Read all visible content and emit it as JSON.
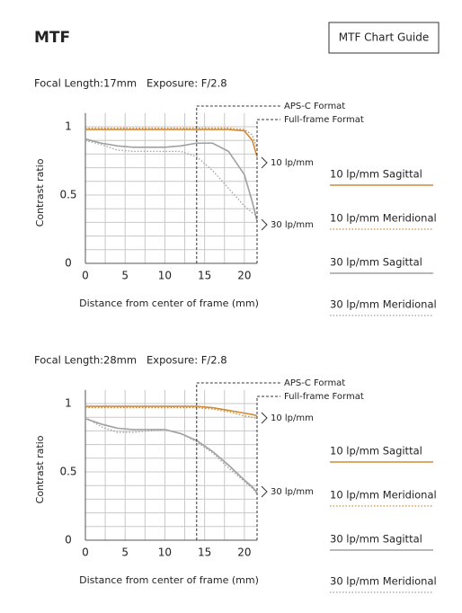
{
  "header": {
    "title": "MTF",
    "button": "MTF Chart Guide"
  },
  "chart_data": [
    {
      "type": "line",
      "subtitles": [
        "Focal Length:17mm",
        "Exposure: F/2.8"
      ],
      "xlabel": "Distance from center of frame (mm)",
      "ylabel": "Contrast ratio",
      "x": [
        0,
        2,
        4,
        6,
        8,
        10,
        12,
        14,
        16,
        18,
        20,
        21,
        21.6
      ],
      "xlim": [
        0,
        21.6
      ],
      "xticks": [
        0,
        5,
        10,
        15,
        20
      ],
      "xgrid": [
        0,
        2.5,
        5,
        7.5,
        10,
        12.5,
        15,
        17.5,
        20
      ],
      "ylim": [
        0,
        1.1
      ],
      "yticks": [
        0,
        0.5,
        1
      ],
      "ygrid": [
        0,
        0.1,
        0.2,
        0.3,
        0.4,
        0.5,
        0.6,
        0.7,
        0.8,
        0.9,
        1
      ],
      "series": [
        {
          "name": "10 lp/mm Sagittal",
          "color": "#d08a3a",
          "style": "solid",
          "values": [
            0.98,
            0.98,
            0.98,
            0.98,
            0.98,
            0.98,
            0.98,
            0.98,
            0.98,
            0.98,
            0.97,
            0.9,
            0.78
          ]
        },
        {
          "name": "10 lp/mm Meridional",
          "color": "#d08a3a",
          "style": "dotted",
          "values": [
            0.99,
            0.99,
            0.99,
            0.99,
            0.99,
            0.99,
            0.99,
            0.99,
            0.99,
            0.99,
            0.98,
            0.94,
            0.84
          ]
        },
        {
          "name": "30 lp/mm Sagittal",
          "color": "#a0a0a0",
          "style": "solid",
          "values": [
            0.91,
            0.88,
            0.86,
            0.85,
            0.85,
            0.85,
            0.86,
            0.88,
            0.88,
            0.82,
            0.65,
            0.45,
            0.31
          ]
        },
        {
          "name": "30 lp/mm Meridional",
          "color": "#a0a0a0",
          "style": "dotted",
          "values": [
            0.9,
            0.87,
            0.83,
            0.82,
            0.82,
            0.82,
            0.82,
            0.78,
            0.68,
            0.55,
            0.42,
            0.37,
            0.35
          ]
        }
      ],
      "annotations": [
        {
          "text": "APS-C Format",
          "x": 14
        },
        {
          "text": "Full-frame Format",
          "x": 21.6
        },
        {
          "text": "10 lp/mm"
        },
        {
          "text": "30 lp/mm"
        }
      ]
    },
    {
      "type": "line",
      "subtitles": [
        "Focal Length:28mm",
        "Exposure: F/2.8"
      ],
      "xlabel": "Distance from center of frame (mm)",
      "ylabel": "Contrast ratio",
      "x": [
        0,
        2,
        4,
        6,
        8,
        10,
        12,
        14,
        16,
        18,
        20,
        21,
        21.6
      ],
      "xlim": [
        0,
        21.6
      ],
      "xticks": [
        0,
        5,
        10,
        15,
        20
      ],
      "xgrid": [
        0,
        2.5,
        5,
        7.5,
        10,
        12.5,
        15,
        17.5,
        20
      ],
      "ylim": [
        0,
        1.1
      ],
      "yticks": [
        0,
        0.5,
        1
      ],
      "ygrid": [
        0,
        0.1,
        0.2,
        0.3,
        0.4,
        0.5,
        0.6,
        0.7,
        0.8,
        0.9,
        1
      ],
      "series": [
        {
          "name": "10 lp/mm Sagittal",
          "color": "#d08a3a",
          "style": "solid",
          "values": [
            0.98,
            0.98,
            0.98,
            0.98,
            0.98,
            0.98,
            0.98,
            0.98,
            0.97,
            0.95,
            0.93,
            0.92,
            0.91
          ]
        },
        {
          "name": "10 lp/mm Meridional",
          "color": "#d08a3a",
          "style": "dotted",
          "values": [
            0.97,
            0.97,
            0.97,
            0.97,
            0.97,
            0.97,
            0.97,
            0.97,
            0.96,
            0.94,
            0.91,
            0.9,
            0.89
          ]
        },
        {
          "name": "30 lp/mm Sagittal",
          "color": "#a0a0a0",
          "style": "solid",
          "values": [
            0.89,
            0.85,
            0.82,
            0.81,
            0.81,
            0.81,
            0.78,
            0.73,
            0.65,
            0.55,
            0.44,
            0.39,
            0.35
          ]
        },
        {
          "name": "30 lp/mm Meridional",
          "color": "#a0a0a0",
          "style": "dotted",
          "values": [
            0.9,
            0.83,
            0.79,
            0.79,
            0.8,
            0.81,
            0.78,
            0.72,
            0.64,
            0.53,
            0.43,
            0.38,
            0.34
          ]
        }
      ],
      "annotations": [
        {
          "text": "APS-C Format",
          "x": 14
        },
        {
          "text": "Full-frame Format",
          "x": 21.6
        },
        {
          "text": "10 lp/mm"
        },
        {
          "text": "30 lp/mm"
        }
      ]
    }
  ]
}
